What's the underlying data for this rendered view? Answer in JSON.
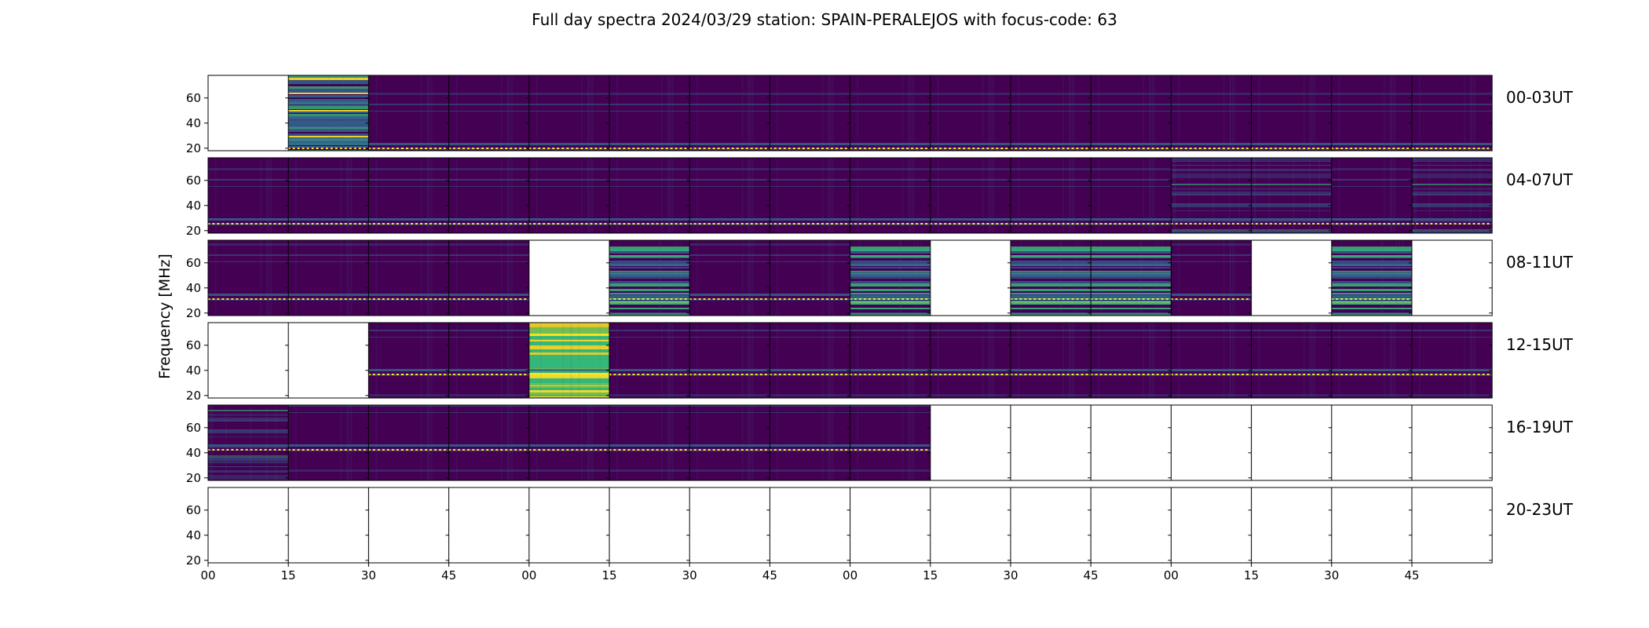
{
  "chart_data": {
    "type": "heatmap",
    "title": "Full day spectra 2024/03/29 station: SPAIN-PERALEJOS with focus-code: 63",
    "ylabel": "Frequency [MHz]",
    "ylim": [
      18,
      78
    ],
    "y_ticks": [
      20,
      40,
      60
    ],
    "x_ticks": [
      "00",
      "15",
      "30",
      "45",
      "00",
      "15",
      "30",
      "45",
      "00",
      "15",
      "30",
      "45",
      "00",
      "15",
      "30",
      "45"
    ],
    "colormap": [
      "#440154",
      "#31688e",
      "#35b779",
      "#fde725"
    ],
    "missing_color": "#ffffff",
    "rows": [
      {
        "label": "00-03UT",
        "panels": [
          0,
          4,
          1,
          1,
          1,
          1,
          1,
          1,
          1,
          1,
          1,
          1,
          1,
          1,
          1,
          1
        ]
      },
      {
        "label": "04-07UT",
        "panels": [
          1,
          1,
          1,
          1,
          1,
          1,
          1,
          1,
          1,
          1,
          1,
          1,
          2,
          2,
          1,
          2
        ]
      },
      {
        "label": "08-11UT",
        "panels": [
          1,
          1,
          1,
          1,
          0,
          3,
          1,
          1,
          3,
          0,
          3,
          3,
          1,
          0,
          3,
          0
        ]
      },
      {
        "label": "12-15UT",
        "panels": [
          0,
          0,
          1,
          1,
          5,
          1,
          1,
          1,
          1,
          1,
          1,
          1,
          1,
          1,
          1,
          1
        ]
      },
      {
        "label": "16-19UT",
        "panels": [
          2,
          1,
          1,
          1,
          1,
          1,
          1,
          1,
          1,
          0,
          0,
          0,
          0,
          0,
          0,
          0
        ]
      },
      {
        "label": "20-23UT",
        "panels": [
          0,
          0,
          0,
          0,
          0,
          0,
          0,
          0,
          0,
          0,
          0,
          0,
          0,
          0,
          0,
          0
        ]
      }
    ],
    "panel_levels": {
      "0": "no data",
      "1": "quiet background",
      "2": "moderate activity",
      "3": "strong horizontal bands",
      "4": "strong bands (teal)",
      "5": "very strong (yellow-green)"
    }
  }
}
